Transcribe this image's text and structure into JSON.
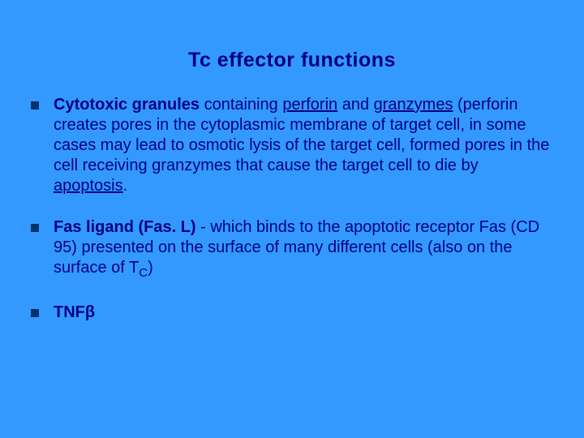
{
  "colors": {
    "background": "#3399ff",
    "text": "#000080",
    "bullet": "#003366"
  },
  "typography": {
    "title_fontsize": 25,
    "body_fontsize": 20,
    "font_family": "Verdana, Arial, sans-serif",
    "line_height": 1.25
  },
  "title": "Tc effector functions",
  "bullets": [
    {
      "lead_bold": "Cytotoxic granules",
      "mid1": " containing ",
      "ul1": "perforin",
      "mid2": " and ",
      "ul2": "granzymes",
      "rest": " (perforin creates pores in the cytoplasmic membrane of target cell, in some cases may lead to osmotic lysis of the target cell, formed pores in the cell receiving granzymes that cause the target cell to die by  ",
      "ul3": "apoptosis",
      "end": "."
    },
    {
      "lead_bold": "Fas ligand (Fas. L)",
      "rest1": " - which binds to the apoptotic receptor Fas (CD 95) presented on the surface of many different cells (also on the surface of T",
      "sub": "C",
      "rest2": ")"
    },
    {
      "lead_bold": "TNFβ"
    }
  ]
}
